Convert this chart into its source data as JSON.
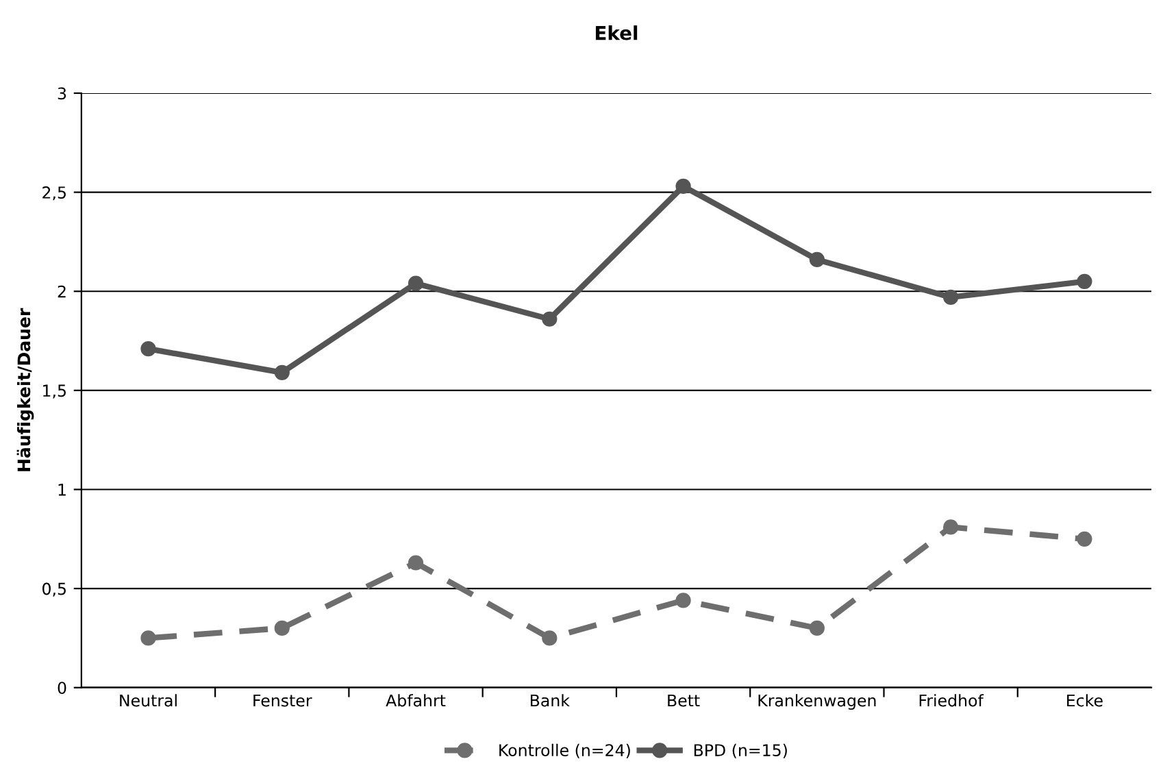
{
  "chart_data": {
    "type": "line",
    "title": "Ekel",
    "ylabel": "Häufigkeit/Dauer",
    "categories": [
      "Neutral",
      "Fenster",
      "Abfahrt",
      "Bank",
      "Bett",
      "Krankenwagen",
      "Friedhof",
      "Ecke"
    ],
    "series": [
      {
        "name": "Kontrolle (n=24)",
        "color": "#6e6e6e",
        "line_style": "dashed",
        "values": [
          0.25,
          0.3,
          0.63,
          0.25,
          0.44,
          0.3,
          0.81,
          0.75
        ]
      },
      {
        "name": "BPD (n=15)",
        "color": "#555555",
        "line_style": "solid",
        "values": [
          1.71,
          1.59,
          2.04,
          1.86,
          2.53,
          2.16,
          1.97,
          2.05
        ]
      }
    ],
    "ylim": [
      0,
      3
    ],
    "yticks": [
      0,
      {
        "value": 0.5,
        "label": "0,5"
      },
      1,
      {
        "value": 1.5,
        "label": "1,5"
      },
      2,
      {
        "value": 2.5,
        "label": "2,5"
      },
      3
    ],
    "grid": "y",
    "legend": "bottom",
    "marker": "circle"
  }
}
